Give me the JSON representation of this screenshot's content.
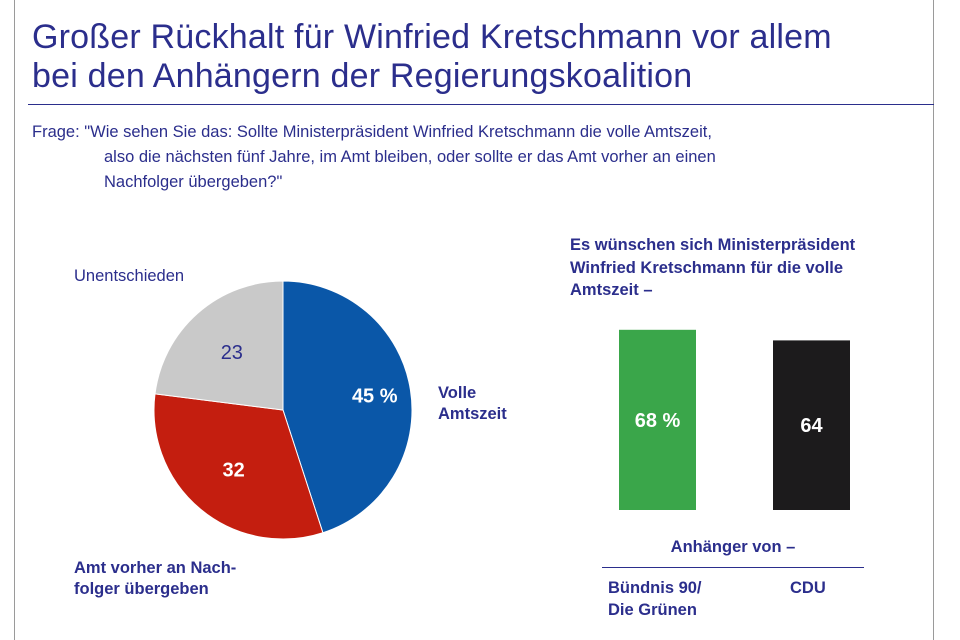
{
  "title_line1": "Großer Rückhalt für Winfried Kretschmann vor allem",
  "title_line2": "bei den Anhängern der Regierungskoalition",
  "question_line1": "Frage: \"Wie sehen Sie das: Sollte Ministerpräsident Winfried Kretschmann die volle Amtszeit,",
  "question_line2": "also die nächsten fünf Jahre, im Amt bleiben, oder sollte er das Amt vorher an einen",
  "question_line3": "Nachfolger übergeben?\"",
  "chart_data": [
    {
      "type": "pie",
      "title": "",
      "slices": [
        {
          "label": "Volle Amtszeit",
          "value": 45,
          "value_label": "45 %",
          "color": "#0a57a8"
        },
        {
          "label": "Amt vorher an Nachfolger übergeben",
          "value": 32,
          "value_label": "32",
          "color": "#c41e0f"
        },
        {
          "label": "Unentschieden",
          "value": 23,
          "value_label": "23",
          "color": "#c9c9c9"
        }
      ],
      "labels": {
        "volle_line1": "Volle",
        "volle_line2": "Amtszeit",
        "amt_line1": "Amt vorher an Nach-",
        "amt_line2": "folger übergeben",
        "unentschieden": "Unentschieden"
      }
    },
    {
      "type": "bar",
      "title_line1": "Es wünschen sich Ministerpräsident",
      "title_line2": "Winfried Kretschmann für die volle",
      "title_line3": "Amtszeit –",
      "xlabel": "Anhänger von –",
      "categories": [
        "Bündnis 90/ Die Grünen",
        "CDU"
      ],
      "category_lines": [
        [
          "Bündnis 90/",
          "Die Grünen"
        ],
        [
          "CDU"
        ]
      ],
      "values": [
        68,
        64
      ],
      "value_labels": [
        "68 %",
        "64"
      ],
      "colors": [
        "#3aa64a",
        "#1c1b1c"
      ],
      "ylim": [
        0,
        100
      ]
    }
  ]
}
